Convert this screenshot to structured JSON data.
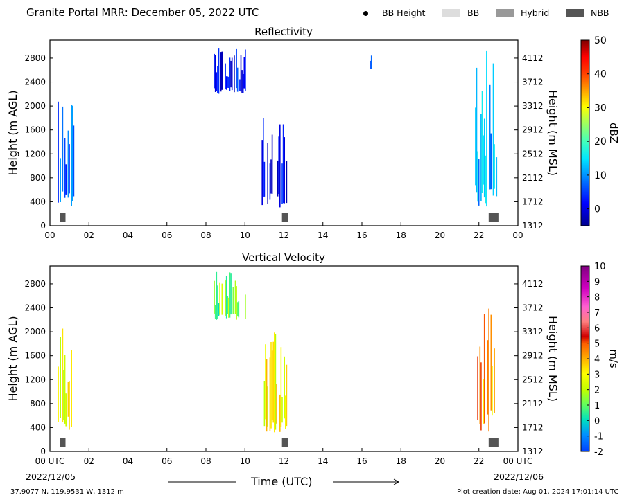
{
  "header": {
    "title": "Granite Portal MRR:  December 05, 2022 UTC",
    "legend": [
      {
        "label": "BB Height",
        "marker": "dot",
        "color": "#000000"
      },
      {
        "label": "BB",
        "marker": "swatch",
        "color": "#dddddd"
      },
      {
        "label": "Hybrid",
        "marker": "swatch",
        "color": "#999999"
      },
      {
        "label": "NBB",
        "marker": "swatch",
        "color": "#555555"
      }
    ]
  },
  "footer": {
    "coords": "37.9077 N, 119.9531 W, 1312 m",
    "created": "Plot creation date: Aug 01, 2024 17:01:14 UTC",
    "x_axis_title": "Time (UTC)",
    "date_start": "2022/12/05",
    "date_end": "2022/12/06"
  },
  "chart_data": [
    {
      "type": "heatmap",
      "title": "Reflectivity",
      "ylabel": "Height (m AGL)",
      "ylabel_right": "Height (m MSL)",
      "colorbar_label": "dBZ",
      "colorbar_ticks": [
        "50",
        "40",
        "30",
        "20",
        "10",
        "0"
      ],
      "colorbar_values": [
        50,
        40,
        30,
        20,
        10,
        0
      ],
      "colorbar_range": [
        -5,
        50
      ],
      "xlim": [
        0,
        24
      ],
      "ylim": [
        0,
        3100
      ],
      "x_ticks": [
        "00",
        "02",
        "04",
        "06",
        "08",
        "10",
        "12",
        "14",
        "16",
        "18",
        "20",
        "22",
        "00"
      ],
      "y_ticks": [
        0,
        400,
        800,
        1200,
        1600,
        2000,
        2400,
        2800
      ],
      "y_ticks_right": [
        1312,
        1712,
        2112,
        2512,
        2912,
        3312,
        3712,
        4112
      ],
      "echo_regions": [
        {
          "start": 0.4,
          "end": 1.2,
          "bottom": 300,
          "top": 2200,
          "value": 8
        },
        {
          "start": 8.4,
          "end": 10.1,
          "bottom": 2200,
          "top": 3000,
          "value": 2
        },
        {
          "start": 10.8,
          "end": 12.2,
          "bottom": 300,
          "top": 2000,
          "value": 1
        },
        {
          "start": 16.4,
          "end": 16.5,
          "bottom": 2600,
          "top": 3000,
          "value": 6
        },
        {
          "start": 21.8,
          "end": 23.0,
          "bottom": 300,
          "top": 3000,
          "value": 12
        }
      ],
      "bright_band": [
        {
          "start": 0.5,
          "end": 0.8,
          "class": "NBB"
        },
        {
          "start": 11.9,
          "end": 12.2,
          "class": "NBB"
        },
        {
          "start": 22.5,
          "end": 23.0,
          "class": "NBB"
        }
      ]
    },
    {
      "type": "heatmap",
      "title": "Vertical Velocity",
      "ylabel": "Height (m AGL)",
      "ylabel_right": "Height (m MSL)",
      "colorbar_label": "m/s",
      "colorbar_ticks": [
        "10",
        "9",
        "8",
        "7",
        "6",
        "5",
        "4",
        "3",
        "2",
        "1",
        "0",
        "-1",
        "-2"
      ],
      "colorbar_values": [
        10,
        9,
        8,
        7,
        6,
        5,
        4,
        3,
        2,
        1,
        0,
        -1,
        -2
      ],
      "colorbar_range": [
        -2,
        10
      ],
      "xlim": [
        0,
        24
      ],
      "ylim": [
        0,
        3100
      ],
      "x_ticks": [
        "00 UTC",
        "02",
        "04",
        "06",
        "08",
        "10",
        "12",
        "14",
        "16",
        "18",
        "20",
        "22",
        "00 UTC"
      ],
      "y_ticks": [
        0,
        400,
        800,
        1200,
        1600,
        2000,
        2400,
        2800
      ],
      "y_ticks_right": [
        1312,
        1712,
        2112,
        2512,
        2912,
        3312,
        3712,
        4112
      ],
      "echo_regions": [
        {
          "start": 0.4,
          "end": 1.2,
          "bottom": 300,
          "top": 2200,
          "value": 2.5
        },
        {
          "start": 8.4,
          "end": 10.1,
          "bottom": 2200,
          "top": 3000,
          "value": 1.2
        },
        {
          "start": 10.8,
          "end": 12.2,
          "bottom": 300,
          "top": 2000,
          "value": 3
        },
        {
          "start": 16.4,
          "end": 16.5,
          "bottom": 2600,
          "top": 3000,
          "value": 1.5
        },
        {
          "start": 21.8,
          "end": 23.0,
          "bottom": 300,
          "top": 3000,
          "value": 4
        }
      ],
      "bright_band": [
        {
          "start": 0.5,
          "end": 0.8,
          "class": "NBB"
        },
        {
          "start": 11.9,
          "end": 12.2,
          "class": "NBB"
        },
        {
          "start": 22.5,
          "end": 23.0,
          "class": "NBB"
        }
      ]
    }
  ]
}
